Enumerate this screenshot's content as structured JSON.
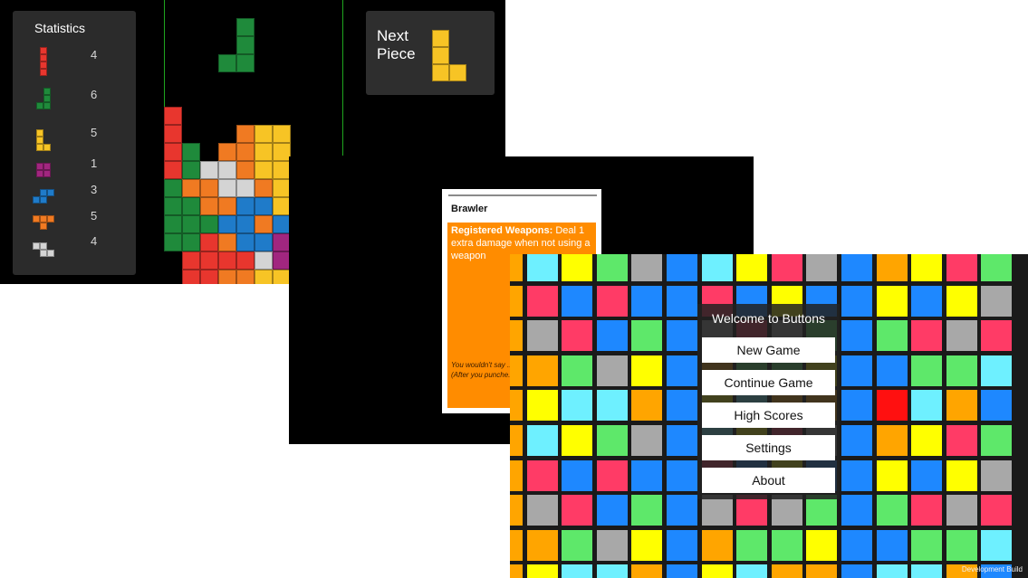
{
  "tetris": {
    "statistics_title": "Statistics",
    "stats": [
      {
        "piece": "I",
        "color": "#e8362e",
        "count": "4"
      },
      {
        "piece": "J",
        "color": "#1f8a3b",
        "count": "6"
      },
      {
        "piece": "L",
        "color": "#f7c425",
        "count": "5"
      },
      {
        "piece": "O",
        "color": "#a1267f",
        "count": "1"
      },
      {
        "piece": "S",
        "color": "#1f7bc9",
        "count": "3"
      },
      {
        "piece": "T",
        "color": "#f07a22",
        "count": "5"
      },
      {
        "piece": "Z",
        "color": "#d4d4d4",
        "count": "4"
      }
    ],
    "next_piece_label": "Next Piece",
    "next_piece_color": "#f7c425",
    "wall_color": "#1fa51f"
  },
  "card": {
    "name": "Brawler",
    "ability_title": "Registered Weapons:",
    "ability_text": " Deal 1 extra damage when not using a weapon",
    "flavor_text": "You wouldn't say ... fight, but you wen... (After you punche... ground)",
    "orange": "#ff8c00"
  },
  "buttons_game": {
    "menu_title": "Welcome to Buttons",
    "menu_items": [
      "New Game",
      "Continue Game",
      "High Scores",
      "Settings",
      "About"
    ],
    "dev_label": "Development Build",
    "palette": [
      "#ffa500",
      "#ffff00",
      "#5ee86a",
      "#1e88ff",
      "#6ef0ff",
      "#ff3b66",
      "#a8a8a8",
      "#ff1010"
    ]
  }
}
